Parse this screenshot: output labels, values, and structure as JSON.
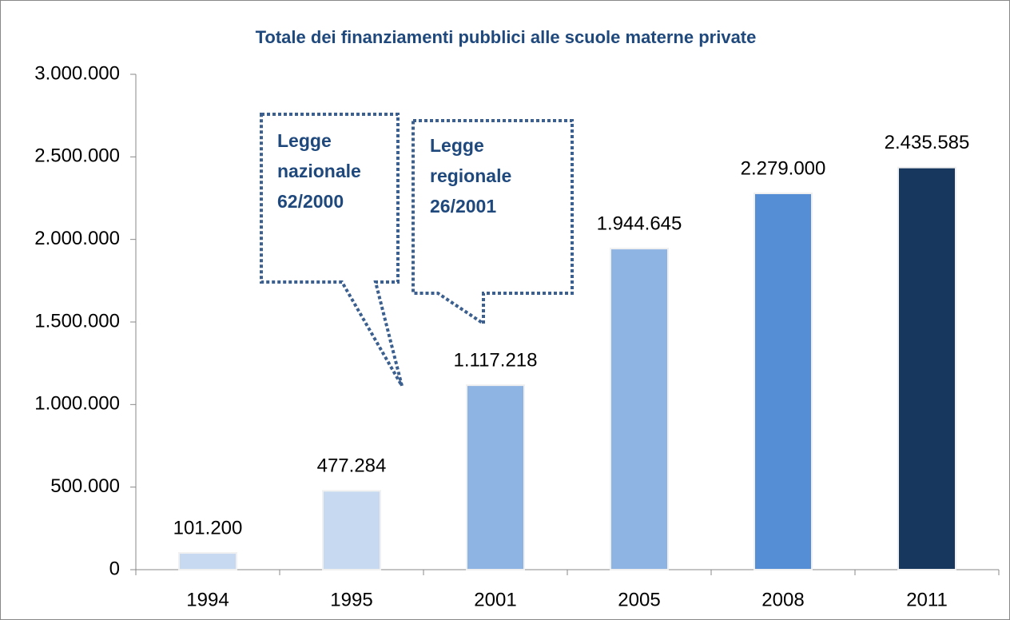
{
  "chart_data": {
    "type": "bar",
    "title": "Totale dei finanziamenti pubblici alle scuole materne private",
    "categories": [
      "1994",
      "1995",
      "2001",
      "2005",
      "2008",
      "2011"
    ],
    "values": [
      101200,
      477284,
      1117218,
      1944645,
      2279000,
      2435585
    ],
    "value_labels": [
      "101.200",
      "477.284",
      "1.117.218",
      "1.944.645",
      "2.279.000",
      "2.435.585"
    ],
    "colors": [
      "#c6d9f1",
      "#c6d9f1",
      "#8eb4e3",
      "#8eb4e3",
      "#558ed5",
      "#17375e"
    ],
    "ylim": [
      0,
      3000000
    ],
    "yticks": [
      0,
      {
        "value": 500000,
        "label": "500.000"
      },
      {
        "value": 1000000,
        "label": "1.000.000"
      },
      {
        "value": 1500000,
        "label": "1.500.000"
      },
      {
        "value": 2000000,
        "label": "2.000.000"
      },
      {
        "value": 2500000,
        "label": "2.500.000"
      },
      {
        "value": 3000000,
        "label": "3.000.000"
      }
    ],
    "grid": false,
    "annotations": [
      [
        "Legge",
        "nazionale",
        "62/2000"
      ],
      [
        "Legge",
        "regionale",
        "26/2001"
      ]
    ]
  }
}
